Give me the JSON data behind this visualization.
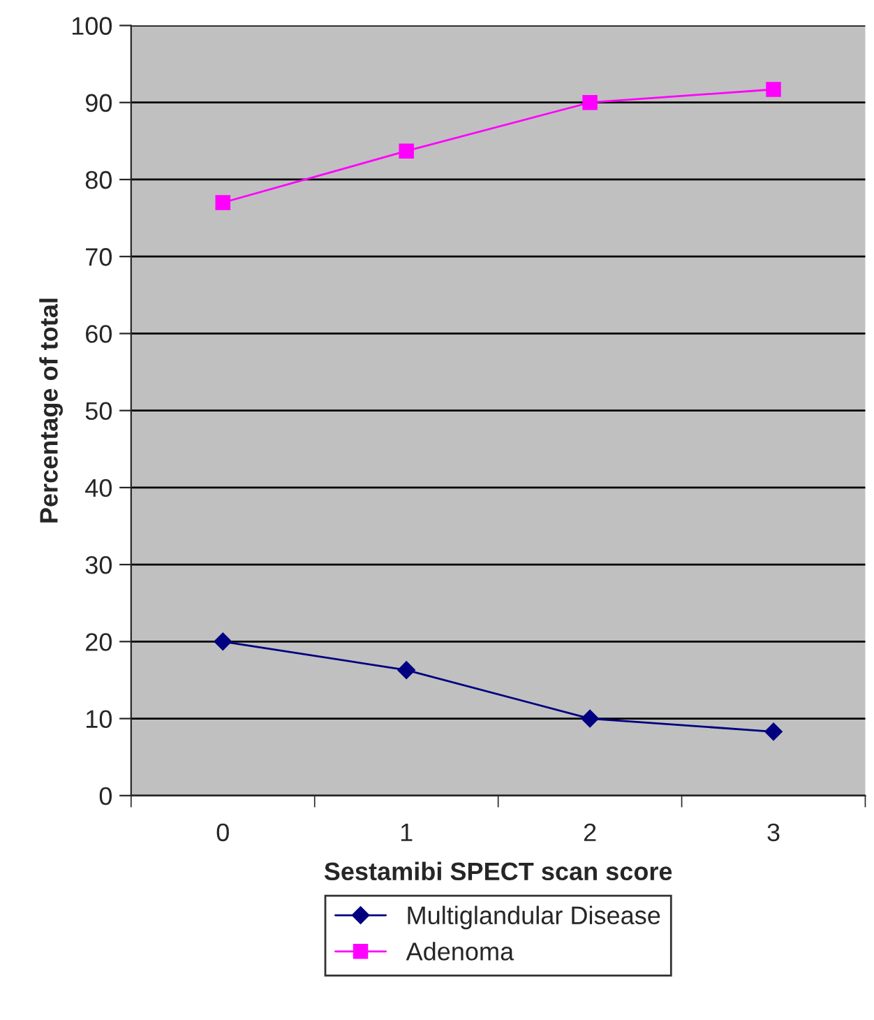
{
  "chart_data": {
    "type": "line",
    "xlabel": "Sestamibi SPECT scan score",
    "ylabel": "Percentage of total",
    "categories": [
      "0",
      "1",
      "2",
      "3"
    ],
    "series": [
      {
        "name": "Multiglandular Disease",
        "color": "#000080",
        "marker": "diamond",
        "values": [
          20.0,
          16.3,
          10.0,
          8.3
        ]
      },
      {
        "name": "Adenoma",
        "color": "#ff00ff",
        "marker": "square",
        "values": [
          77.0,
          83.7,
          90.0,
          91.7
        ]
      }
    ],
    "ylim": [
      0,
      100
    ],
    "yticks": [
      0,
      10,
      20,
      30,
      40,
      50,
      60,
      70,
      80,
      90,
      100
    ],
    "grid": "y",
    "legend": "bottom",
    "line_style": "solid"
  }
}
